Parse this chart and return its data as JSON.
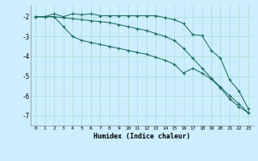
{
  "xlabel": "Humidex (Indice chaleur)",
  "background_color": "#cceeff",
  "line_color": "#1e6b5e",
  "grid_color": "#aaddcc",
  "xlim": [
    -0.5,
    23.5
  ],
  "ylim": [
    -7.5,
    -1.4
  ],
  "yticks": [
    -7,
    -6,
    -5,
    -4,
    -3,
    -2
  ],
  "xticks": [
    0,
    1,
    2,
    3,
    4,
    5,
    6,
    7,
    8,
    9,
    10,
    11,
    12,
    13,
    14,
    15,
    16,
    17,
    18,
    19,
    20,
    21,
    22,
    23
  ],
  "series": [
    [
      -2.0,
      -2.0,
      -1.85,
      -2.0,
      -1.85,
      -1.9,
      -1.85,
      -1.95,
      -1.95,
      -1.95,
      -1.95,
      -1.95,
      -1.95,
      -1.95,
      -2.05,
      -2.15,
      -2.35,
      -2.9,
      -2.95,
      -3.7,
      -4.1,
      -5.2,
      -5.75,
      -6.65
    ],
    [
      -2.0,
      -2.0,
      -2.0,
      -2.05,
      -2.1,
      -2.15,
      -2.2,
      -2.25,
      -2.3,
      -2.4,
      -2.5,
      -2.6,
      -2.7,
      -2.85,
      -3.0,
      -3.2,
      -3.6,
      -4.1,
      -4.6,
      -5.1,
      -5.55,
      -6.0,
      -6.4,
      -6.85
    ],
    [
      -2.0,
      -2.0,
      -2.0,
      -2.5,
      -3.0,
      -3.2,
      -3.3,
      -3.4,
      -3.5,
      -3.6,
      -3.7,
      -3.8,
      -3.9,
      -4.05,
      -4.2,
      -4.4,
      -4.85,
      -4.6,
      -4.85,
      -5.15,
      -5.6,
      -6.15,
      -6.55,
      -6.85
    ]
  ]
}
